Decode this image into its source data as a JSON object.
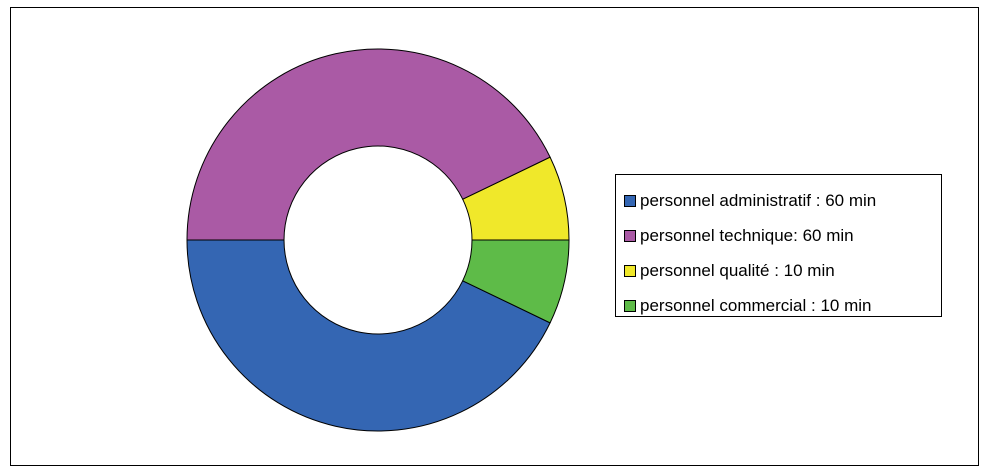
{
  "chart_data": {
    "type": "pie",
    "variant": "donut",
    "title": "",
    "legend_position": "right",
    "series": [
      {
        "name": "personnel administratif : 60 min",
        "value": 60,
        "color": "#3466b3"
      },
      {
        "name": "personnel technique: 60 min",
        "value": 60,
        "color": "#aa5aa5"
      },
      {
        "name": "personnel qualité : 10 min",
        "value": 10,
        "color": "#f0e82a"
      },
      {
        "name": "personnel commercial : 10 min",
        "value": 10,
        "color": "#5ebb48"
      }
    ],
    "slice_order_counterclockwise_from_left": [
      "personnel administratif : 60 min",
      "personnel commercial : 10 min",
      "personnel qualité : 10 min",
      "personnel technique: 60 min"
    ]
  },
  "legend": {
    "items": [
      {
        "label": "personnel administratif : 60 min",
        "color": "#3466b3"
      },
      {
        "label": "personnel technique: 60 min",
        "color": "#aa5aa5"
      },
      {
        "label": "personnel qualité : 10 min",
        "color": "#f0e82a"
      },
      {
        "label": "personnel commercial : 10 min",
        "color": "#5ebb48"
      }
    ]
  }
}
